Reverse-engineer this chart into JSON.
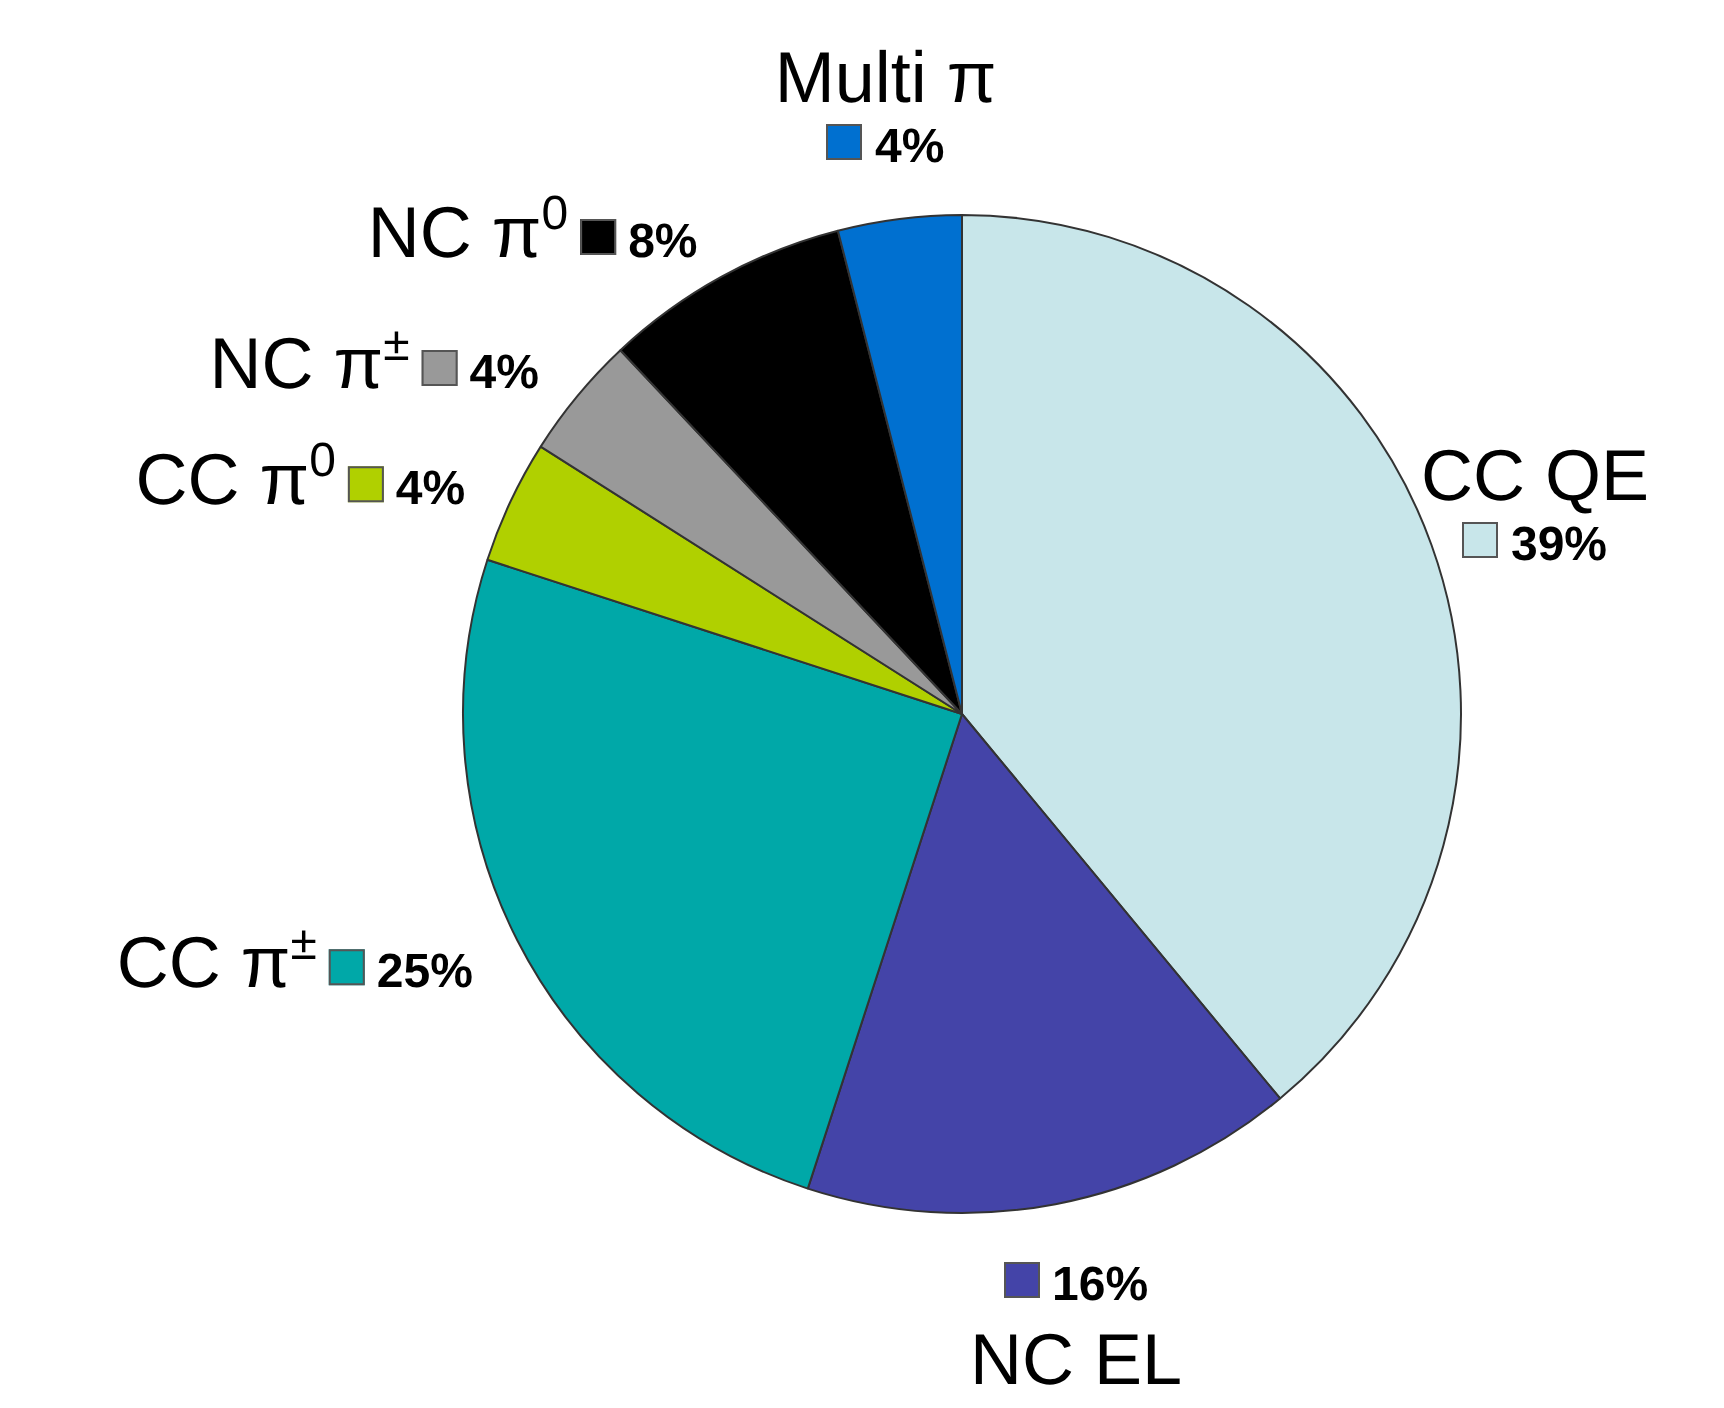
{
  "chart_data": {
    "type": "pie",
    "categories": [
      "CC QE",
      "NC EL",
      "CC π$^{±}$",
      "CC π$^{0}$",
      "NC π$^{±}$",
      "NC π$^{0}$",
      "Multi π"
    ],
    "values": [
      39,
      16,
      25,
      4,
      4,
      8,
      4
    ],
    "value_labels": [
      "39%",
      "16%",
      "25%",
      "4%",
      "4%",
      "8%",
      "4%"
    ],
    "colors": [
      "#c8e6ea",
      "#4444a8",
      "#00a8a8",
      "#b0d000",
      "#999999",
      "#000000",
      "#0070d0"
    ],
    "legend": "left"
  }
}
